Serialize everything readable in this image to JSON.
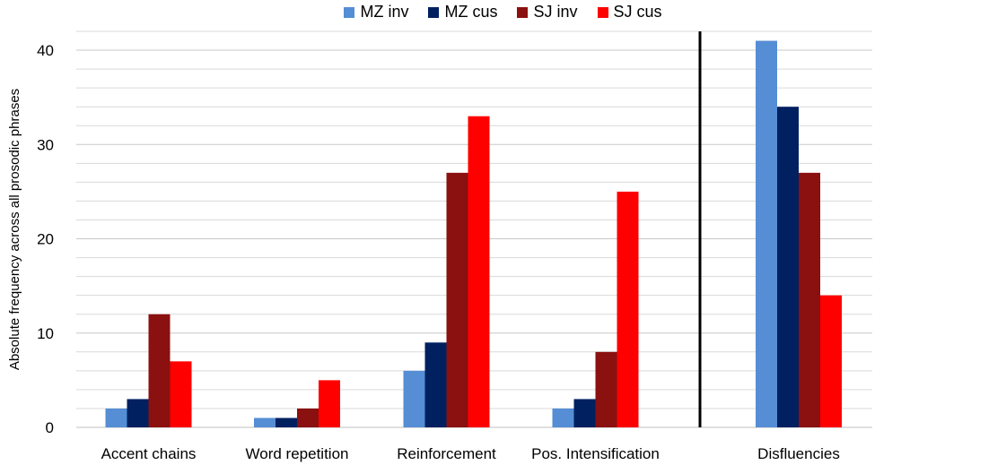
{
  "chart_data": {
    "type": "bar",
    "ylabel": "Absolute frequency across all prosodic phrases",
    "xlabel": "",
    "ylim": [
      0,
      42
    ],
    "yticks": [
      0,
      10,
      20,
      30,
      40
    ],
    "minor_grid_step": 2,
    "grid": true,
    "legend_position": "top-center",
    "separator_after_category": "Pos. Intensification",
    "categories": [
      "Accent chains",
      "Word repetition",
      "Reinforcement",
      "Pos. Intensification",
      "Disfluencies"
    ],
    "series": [
      {
        "name": "MZ inv",
        "color": "#558ed5",
        "values": [
          2,
          1,
          6,
          2,
          41
        ]
      },
      {
        "name": "MZ cus",
        "color": "#002060",
        "values": [
          3,
          1,
          9,
          3,
          34
        ]
      },
      {
        "name": "SJ inv",
        "color": "#8b1010",
        "values": [
          12,
          2,
          27,
          8,
          27
        ]
      },
      {
        "name": "SJ cus",
        "color": "#ff0000",
        "values": [
          7,
          5,
          33,
          25,
          14
        ]
      }
    ]
  }
}
